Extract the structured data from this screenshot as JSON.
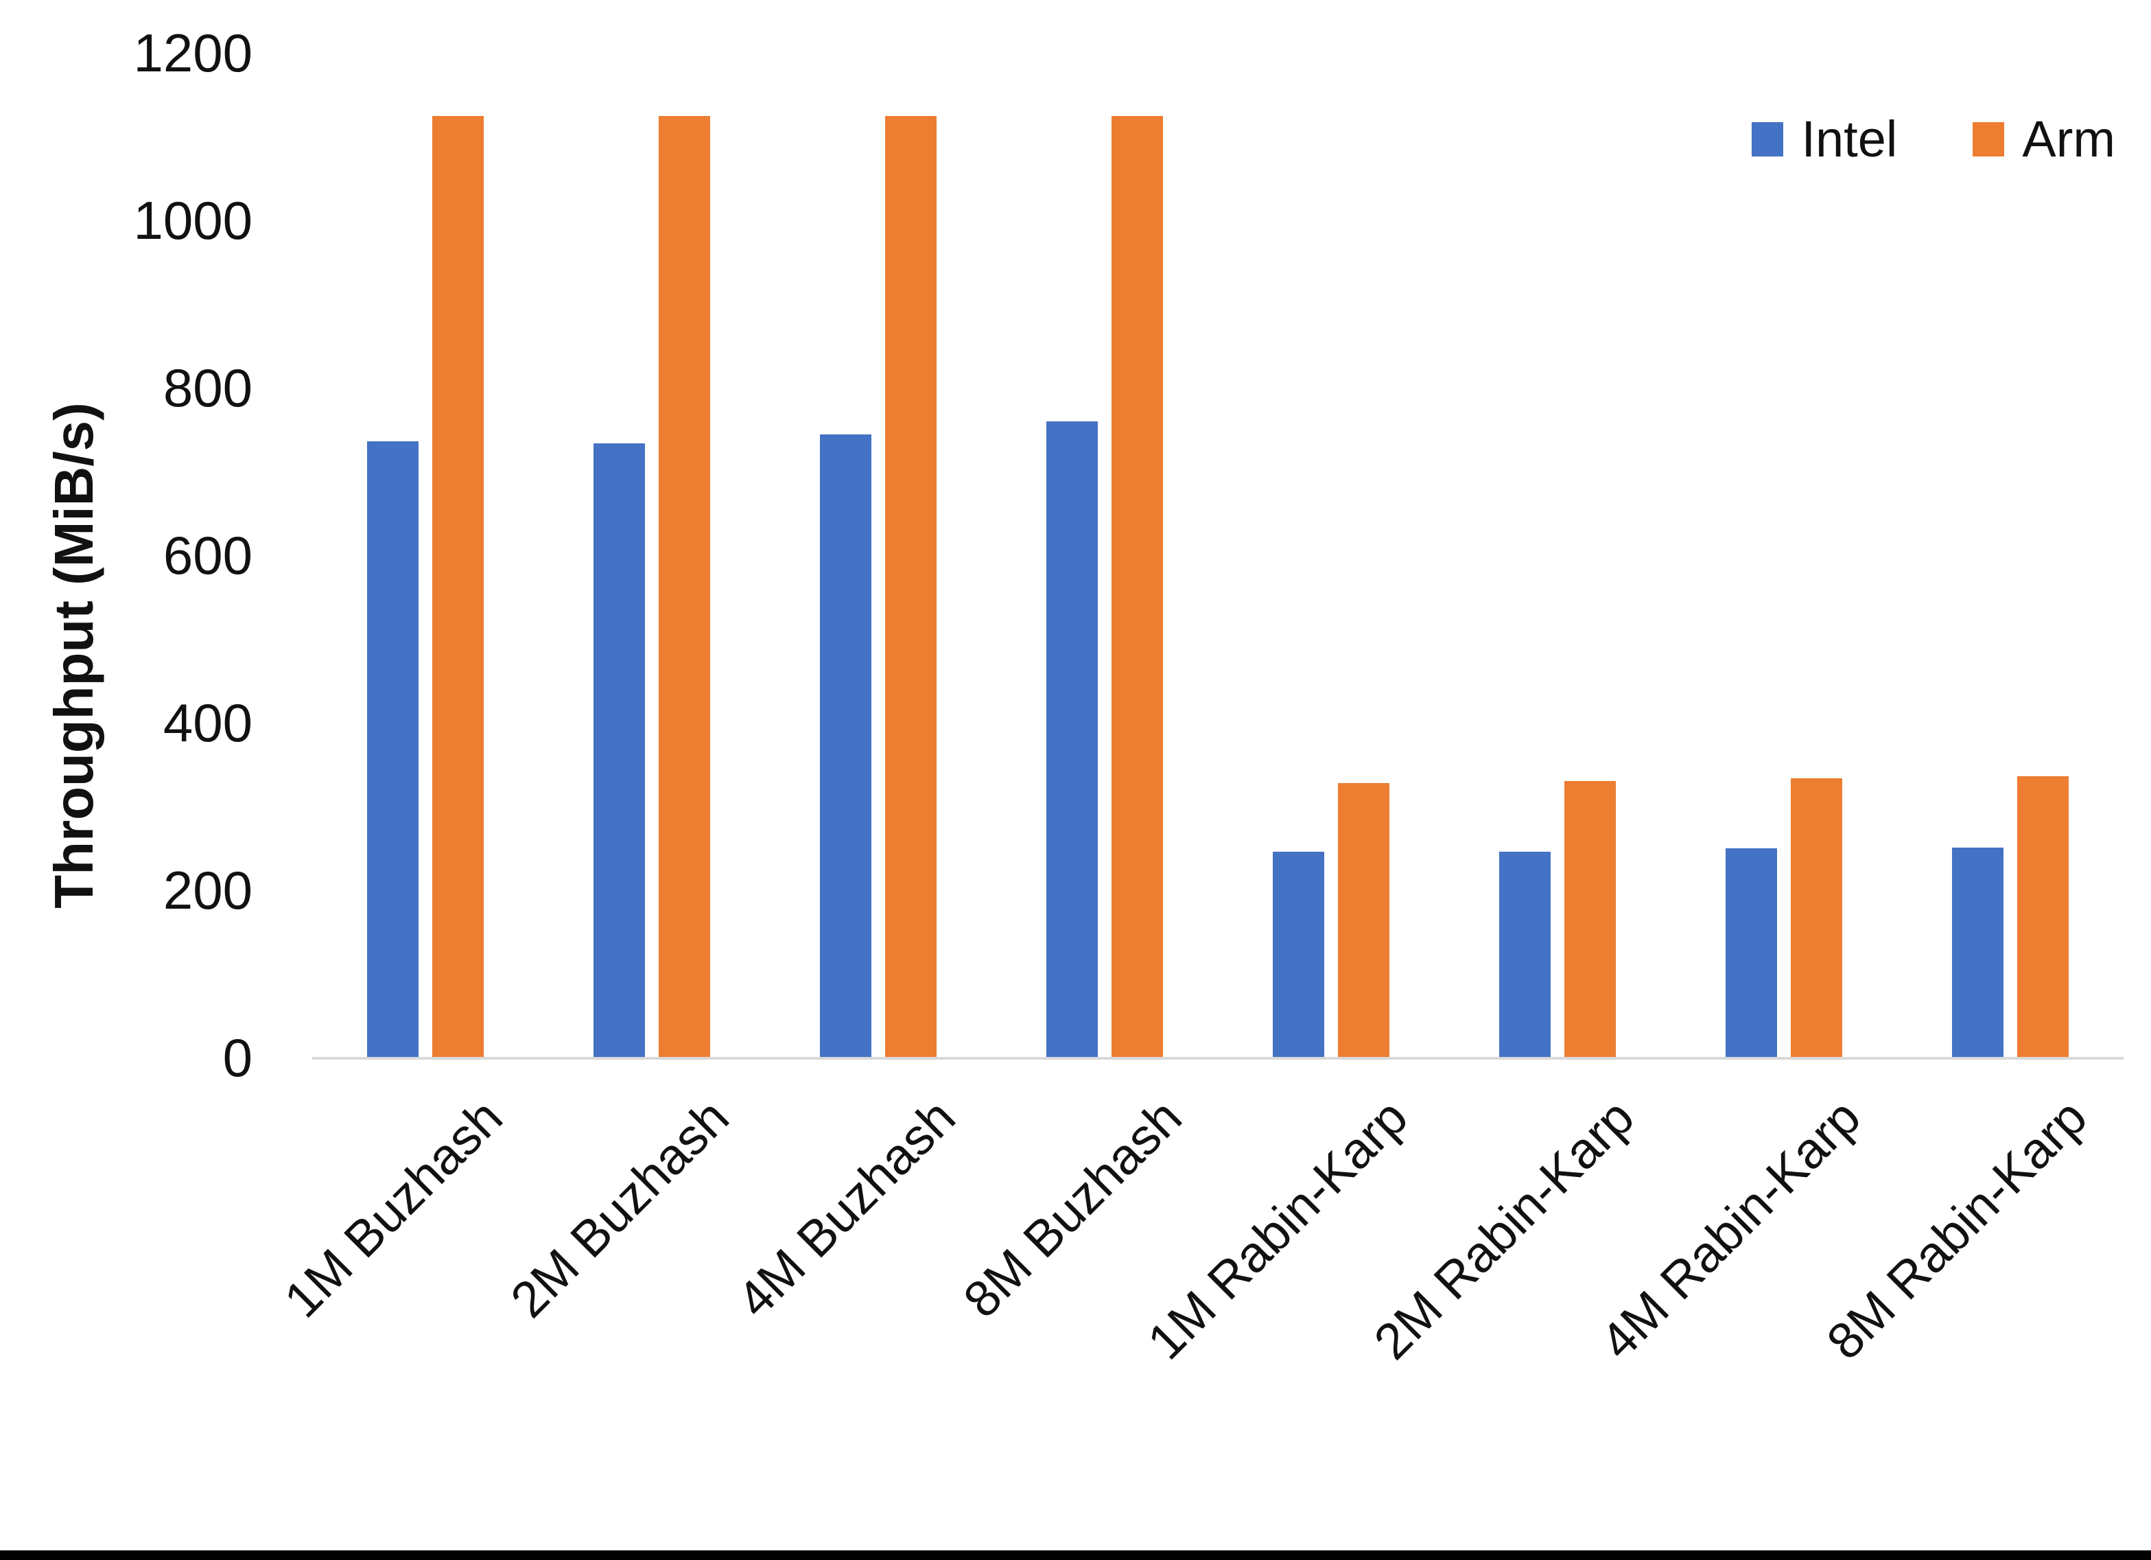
{
  "chart_data": {
    "type": "bar",
    "title": "",
    "xlabel": "",
    "ylabel": "Throughput (MiB/s)",
    "ylim": [
      0,
      1200
    ],
    "yticks": [
      0,
      200,
      400,
      600,
      800,
      1000,
      1200
    ],
    "grid": false,
    "legend_position": "top-right",
    "categories": [
      "1M Buzhash",
      "2M Buzhash",
      "4M Buzhash",
      "8M Buzhash",
      "1M Rabin-Karp",
      "2M Rabin-Karp",
      "4M Rabin-Karp",
      "8M Rabin-Karp"
    ],
    "series": [
      {
        "name": "Intel",
        "color": "#4472C4",
        "values": [
          736,
          734,
          744,
          760,
          246,
          246,
          250,
          251
        ]
      },
      {
        "name": "Arm",
        "color": "#ED7D31",
        "values": [
          1125,
          1125,
          1125,
          1125,
          328,
          330,
          334,
          336
        ]
      }
    ],
    "colors": {
      "axis_line": "#D9D9D9",
      "text": "#111111",
      "background": "#FFFFFF",
      "bottom_border": "#000000"
    }
  }
}
